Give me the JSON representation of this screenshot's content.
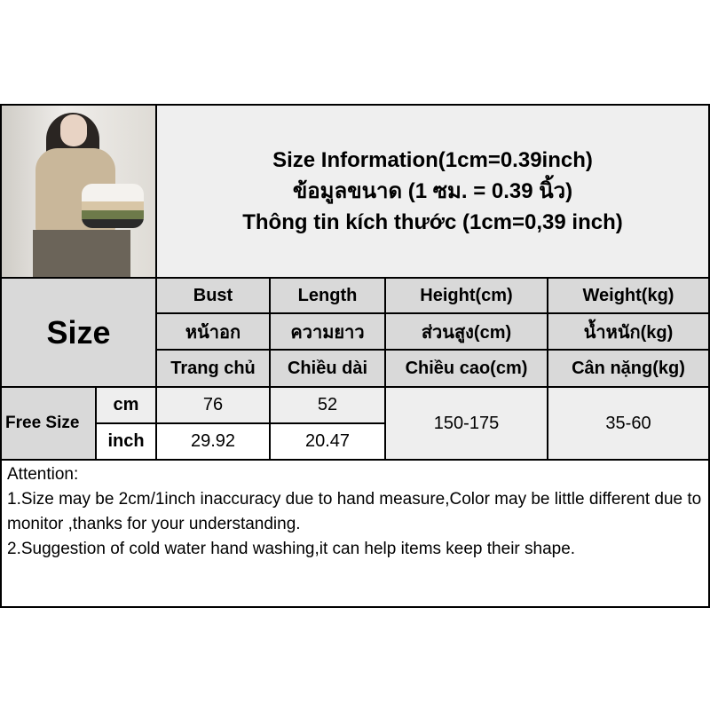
{
  "title": {
    "line1": "Size Information(1cm=0.39inch)",
    "line2": "ข้อมูลขนาด (1 ซม. = 0.39 นิ้ว)",
    "line3": "Thông tin kích thước (1cm=0,39 inch)"
  },
  "table": {
    "size_label": "Size",
    "columns": [
      {
        "en": "Bust",
        "th": "หน้าอก",
        "vi": "Trang chủ"
      },
      {
        "en": "Length",
        "th": "ความยาว",
        "vi": "Chiều dài"
      },
      {
        "en": "Height(cm)",
        "th": "ส่วนสูง(cm)",
        "vi": "Chiều cao(cm)"
      },
      {
        "en": "Weight(kg)",
        "th": "น้ำหนัก(kg)",
        "vi": "Cân nặng(kg)"
      }
    ],
    "row": {
      "size": "Free Size",
      "cm_label": "cm",
      "inch_label": "inch",
      "bust_cm": "76",
      "length_cm": "52",
      "bust_inch": "29.92",
      "length_inch": "20.47",
      "height": "150-175",
      "weight": "35-60"
    }
  },
  "attention": {
    "heading": "Attention:",
    "line1": "1.Size may be 2cm/1inch inaccuracy due to hand measure,Color may be little different due to monitor ,thanks for your understanding.",
    "line2": "2.Suggestion of cold water hand washing,it can help items keep their shape."
  }
}
